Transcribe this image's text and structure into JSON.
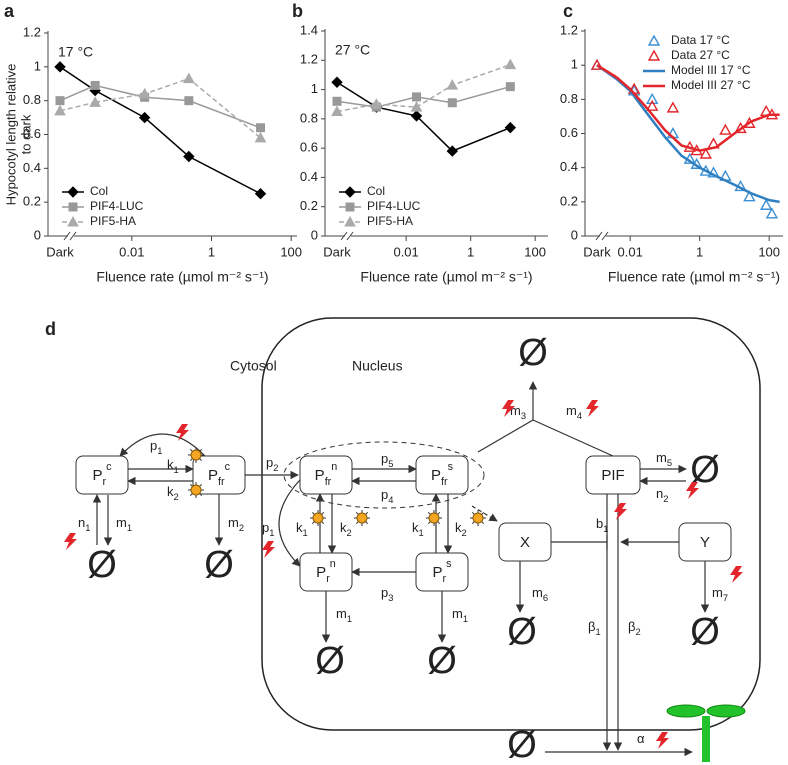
{
  "chart_data": [
    {
      "type": "line",
      "panel_label": "a",
      "annotation": "17 °C",
      "y_label": [
        "Hypocotyl length relative",
        "to dark"
      ],
      "x_label": "Fluence rate (µmol m⁻² s⁻¹)",
      "dark_label": "Dark",
      "x_scale": "log",
      "xlim": [
        0.0005,
        140
      ],
      "xticks": [
        0.01,
        1,
        100
      ],
      "ylim": [
        0,
        1.2
      ],
      "yticks": [
        0,
        0.2,
        0.4,
        0.6,
        0.8,
        1,
        1.2
      ],
      "legend_position": "lower left",
      "x": [
        0.0012,
        0.021,
        0.27,
        17
      ],
      "series": [
        {
          "name": "Col",
          "color": "#000000",
          "marker": "diamond",
          "line_style": "solid",
          "dark_value": 1,
          "values": [
            0.86,
            0.7,
            0.47,
            0.25
          ]
        },
        {
          "name": "PIF4-LUC",
          "color": "#999999",
          "marker": "square",
          "line_style": "solid",
          "dark_value": 0.8,
          "values": [
            0.89,
            0.82,
            0.8,
            0.64
          ]
        },
        {
          "name": "PIF5-HA",
          "color": "#aaaaaa",
          "marker": "triangle",
          "line_style": "dashed",
          "dark_value": 0.74,
          "values": [
            0.79,
            0.84,
            0.93,
            0.58
          ]
        }
      ]
    },
    {
      "type": "line",
      "panel_label": "b",
      "annotation": "27 °C",
      "x_label": "Fluence rate (µmol m⁻² s⁻¹)",
      "dark_label": "Dark",
      "x_scale": "log",
      "xlim": [
        0.0003,
        250
      ],
      "xticks": [
        0.01,
        1,
        100
      ],
      "ylim": [
        0,
        1.4
      ],
      "yticks": [
        0,
        0.2,
        0.4,
        0.6,
        0.8,
        1,
        1.2,
        1.4
      ],
      "legend_position": "lower left",
      "x": [
        0.0012,
        0.021,
        0.27,
        17
      ],
      "series": [
        {
          "name": "Col",
          "color": "#000000",
          "marker": "diamond",
          "line_style": "solid",
          "dark_value": 1.05,
          "values": [
            0.88,
            0.82,
            0.58,
            0.74
          ]
        },
        {
          "name": "PIF4-LUC",
          "color": "#999999",
          "marker": "square",
          "line_style": "solid",
          "dark_value": 0.92,
          "values": [
            0.88,
            0.95,
            0.91,
            1.02
          ]
        },
        {
          "name": "PIF5-HA",
          "color": "#aaaaaa",
          "marker": "triangle",
          "line_style": "dashed",
          "dark_value": 0.85,
          "values": [
            0.9,
            0.88,
            1.03,
            1.17
          ]
        }
      ]
    },
    {
      "type": "line",
      "panel_label": "c",
      "x_label": "Fluence rate (µmol m⁻² s⁻¹)",
      "dark_label": "Dark",
      "x_scale": "log",
      "xlim": [
        0.003,
        250
      ],
      "xticks": [
        0.01,
        1,
        100
      ],
      "ylim": [
        0,
        1.2
      ],
      "yticks": [
        0,
        0.2,
        0.4,
        0.6,
        0.8,
        1,
        1.2
      ],
      "legend_position": "upper right",
      "series": [
        {
          "name": "Data 17 °C",
          "color": "#3b8fd4",
          "marker": "triangle",
          "marker_fill": "none",
          "line_style": "none",
          "dark_value": 1,
          "x": [
            0.013,
            0.043,
            0.17,
            0.52,
            0.82,
            1.5,
            2.5,
            5.5,
            15,
            27,
            82,
            120
          ],
          "values": [
            0.85,
            0.8,
            0.6,
            0.45,
            0.42,
            0.38,
            0.37,
            0.35,
            0.29,
            0.23,
            0.18,
            0.13
          ]
        },
        {
          "name": "Data 27 °C",
          "color": "#e3262b",
          "marker": "triangle",
          "marker_fill": "none",
          "line_style": "none",
          "dark_value": 1,
          "x": [
            0.013,
            0.043,
            0.17,
            0.52,
            0.82,
            1.5,
            2.5,
            5.5,
            15,
            27,
            82,
            120
          ],
          "values": [
            0.86,
            0.76,
            0.75,
            0.52,
            0.5,
            0.48,
            0.54,
            0.62,
            0.63,
            0.66,
            0.73,
            0.71
          ]
        },
        {
          "name": "Model III 17 °C",
          "color": "#2f7fc1",
          "marker": "none",
          "line_style": "solid",
          "line_width": 2.5,
          "dark_value": 1,
          "x": [
            0.004,
            0.01,
            0.03,
            0.1,
            0.3,
            1,
            3,
            10,
            30,
            100,
            200
          ],
          "values": [
            0.92,
            0.85,
            0.72,
            0.58,
            0.47,
            0.4,
            0.35,
            0.3,
            0.25,
            0.21,
            0.2
          ]
        },
        {
          "name": "Model III 27 °C",
          "color": "#e3262b",
          "marker": "none",
          "line_style": "solid",
          "line_width": 2.5,
          "dark_value": 1,
          "x": [
            0.004,
            0.01,
            0.03,
            0.1,
            0.3,
            1,
            3,
            10,
            30,
            100,
            200
          ],
          "values": [
            0.93,
            0.86,
            0.75,
            0.62,
            0.53,
            0.5,
            0.52,
            0.6,
            0.67,
            0.71,
            0.71
          ]
        }
      ]
    }
  ],
  "diagram": {
    "panel_label": "d",
    "compartments": [
      "Cytosol",
      "Nucleus"
    ],
    "nodes": [
      {
        "t": "P",
        "s": "r",
        "p": "c"
      },
      {
        "t": "P",
        "s": "fr",
        "p": "c"
      },
      {
        "t": "P",
        "s": "fr",
        "p": "n"
      },
      {
        "t": "P",
        "s": "fr",
        "p": "s"
      },
      {
        "t": "P",
        "s": "r",
        "p": "n"
      },
      {
        "t": "P",
        "s": "r",
        "p": "s"
      },
      {
        "t": "PIF"
      },
      {
        "t": "X"
      },
      {
        "t": "Y"
      }
    ],
    "rates": [
      {
        "t": "p",
        "s": "1"
      },
      {
        "t": "k",
        "s": "1"
      },
      {
        "t": "k",
        "s": "2"
      },
      {
        "t": "n",
        "s": "1"
      },
      {
        "t": "m",
        "s": "1"
      },
      {
        "t": "m",
        "s": "2"
      },
      {
        "t": "p",
        "s": "2"
      },
      {
        "t": "p",
        "s": "5"
      },
      {
        "t": "p",
        "s": "4"
      },
      {
        "t": "p",
        "s": "1"
      },
      {
        "t": "k",
        "s": "1"
      },
      {
        "t": "k",
        "s": "2"
      },
      {
        "t": "k",
        "s": "1"
      },
      {
        "t": "k",
        "s": "2"
      },
      {
        "t": "p",
        "s": "3"
      },
      {
        "t": "m",
        "s": "1"
      },
      {
        "t": "m",
        "s": "1"
      },
      {
        "t": "m",
        "s": "3"
      },
      {
        "t": "m",
        "s": "4"
      },
      {
        "t": "m",
        "s": "5"
      },
      {
        "t": "n",
        "s": "2"
      },
      {
        "t": "b",
        "s": "1"
      },
      {
        "t": "m",
        "s": "6"
      },
      {
        "t": "m",
        "s": "7"
      },
      {
        "t": "β",
        "s": "1"
      },
      {
        "t": "β",
        "s": "2"
      },
      {
        "t": "α"
      }
    ],
    "sinks": [
      "Ø",
      "Ø",
      "Ø",
      "Ø",
      "Ø",
      "Ø",
      "Ø",
      "Ø",
      "Ø"
    ]
  }
}
